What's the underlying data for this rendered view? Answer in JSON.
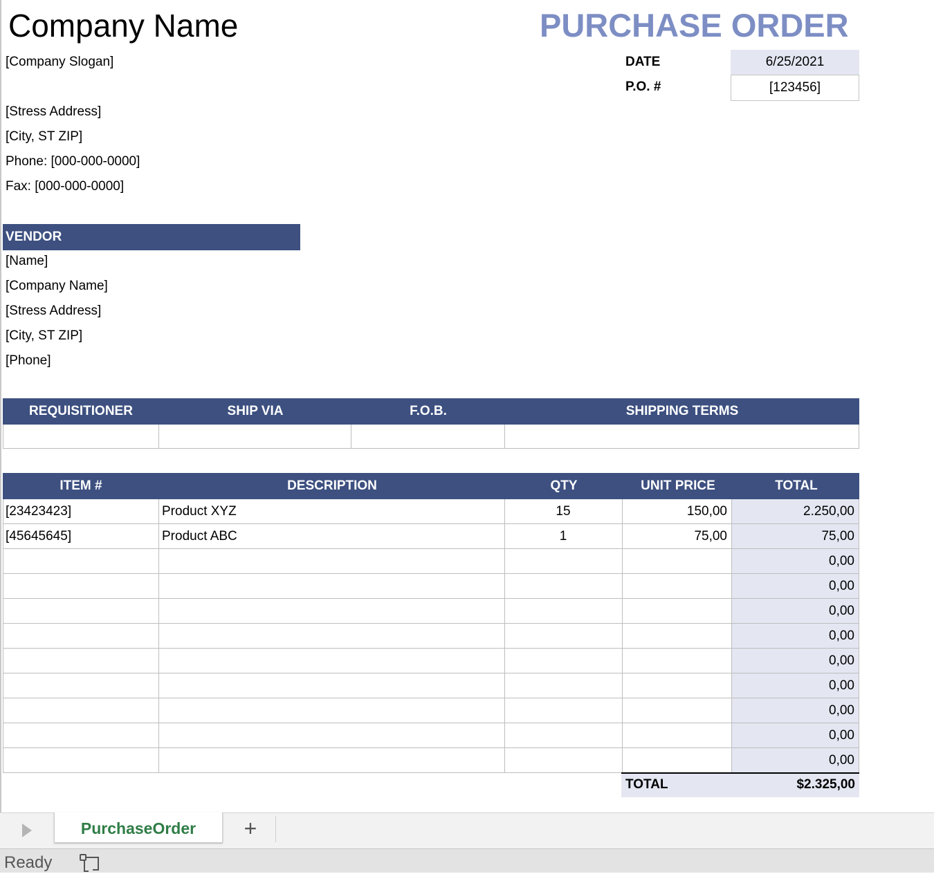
{
  "header": {
    "company_name": "Company Name",
    "title": "PURCHASE ORDER",
    "slogan": "[Company Slogan]",
    "address": [
      "[Stress Address]",
      "[City, ST  ZIP]",
      "Phone: [000-000-0000]",
      "Fax: [000-000-0000]"
    ],
    "date_label": "DATE",
    "date_value": "6/25/2021",
    "po_label": "P.O. #",
    "po_value": "[123456]"
  },
  "vendor": {
    "heading": "VENDOR",
    "lines": [
      "[Name]",
      "[Company Name]",
      "[Stress Address]",
      "[City, ST  ZIP]",
      "[Phone]"
    ]
  },
  "shipping": {
    "headers": [
      "REQUISITIONER",
      "SHIP VIA",
      "F.O.B.",
      "SHIPPING TERMS"
    ]
  },
  "items": {
    "headers": [
      "ITEM #",
      "DESCRIPTION",
      "QTY",
      "UNIT PRICE",
      "TOTAL"
    ],
    "rows": [
      {
        "item": "[23423423]",
        "description": "Product XYZ",
        "qty": "15",
        "unit_price": "150,00",
        "total": "2.250,00"
      },
      {
        "item": "[45645645]",
        "description": "Product ABC",
        "qty": "1",
        "unit_price": "75,00",
        "total": "75,00"
      },
      {
        "item": "",
        "description": "",
        "qty": "",
        "unit_price": "",
        "total": "0,00"
      },
      {
        "item": "",
        "description": "",
        "qty": "",
        "unit_price": "",
        "total": "0,00"
      },
      {
        "item": "",
        "description": "",
        "qty": "",
        "unit_price": "",
        "total": "0,00"
      },
      {
        "item": "",
        "description": "",
        "qty": "",
        "unit_price": "",
        "total": "0,00"
      },
      {
        "item": "",
        "description": "",
        "qty": "",
        "unit_price": "",
        "total": "0,00"
      },
      {
        "item": "",
        "description": "",
        "qty": "",
        "unit_price": "",
        "total": "0,00"
      },
      {
        "item": "",
        "description": "",
        "qty": "",
        "unit_price": "",
        "total": "0,00"
      },
      {
        "item": "",
        "description": "",
        "qty": "",
        "unit_price": "",
        "total": "0,00"
      },
      {
        "item": "",
        "description": "",
        "qty": "",
        "unit_price": "",
        "total": "0,00"
      }
    ],
    "grand_total_label": "TOTAL",
    "grand_total_value": "$2.325,00"
  },
  "tabs": {
    "active": "PurchaseOrder",
    "add_icon": "plus-icon",
    "nav_icon": "play-icon"
  },
  "status": {
    "text": "Ready",
    "macro_icon": "macro-record-icon"
  },
  "colors": {
    "band": "#3d5080",
    "title": "#7d8ec4",
    "shade": "#e4e7f2",
    "tab_text": "#2f7d46"
  }
}
